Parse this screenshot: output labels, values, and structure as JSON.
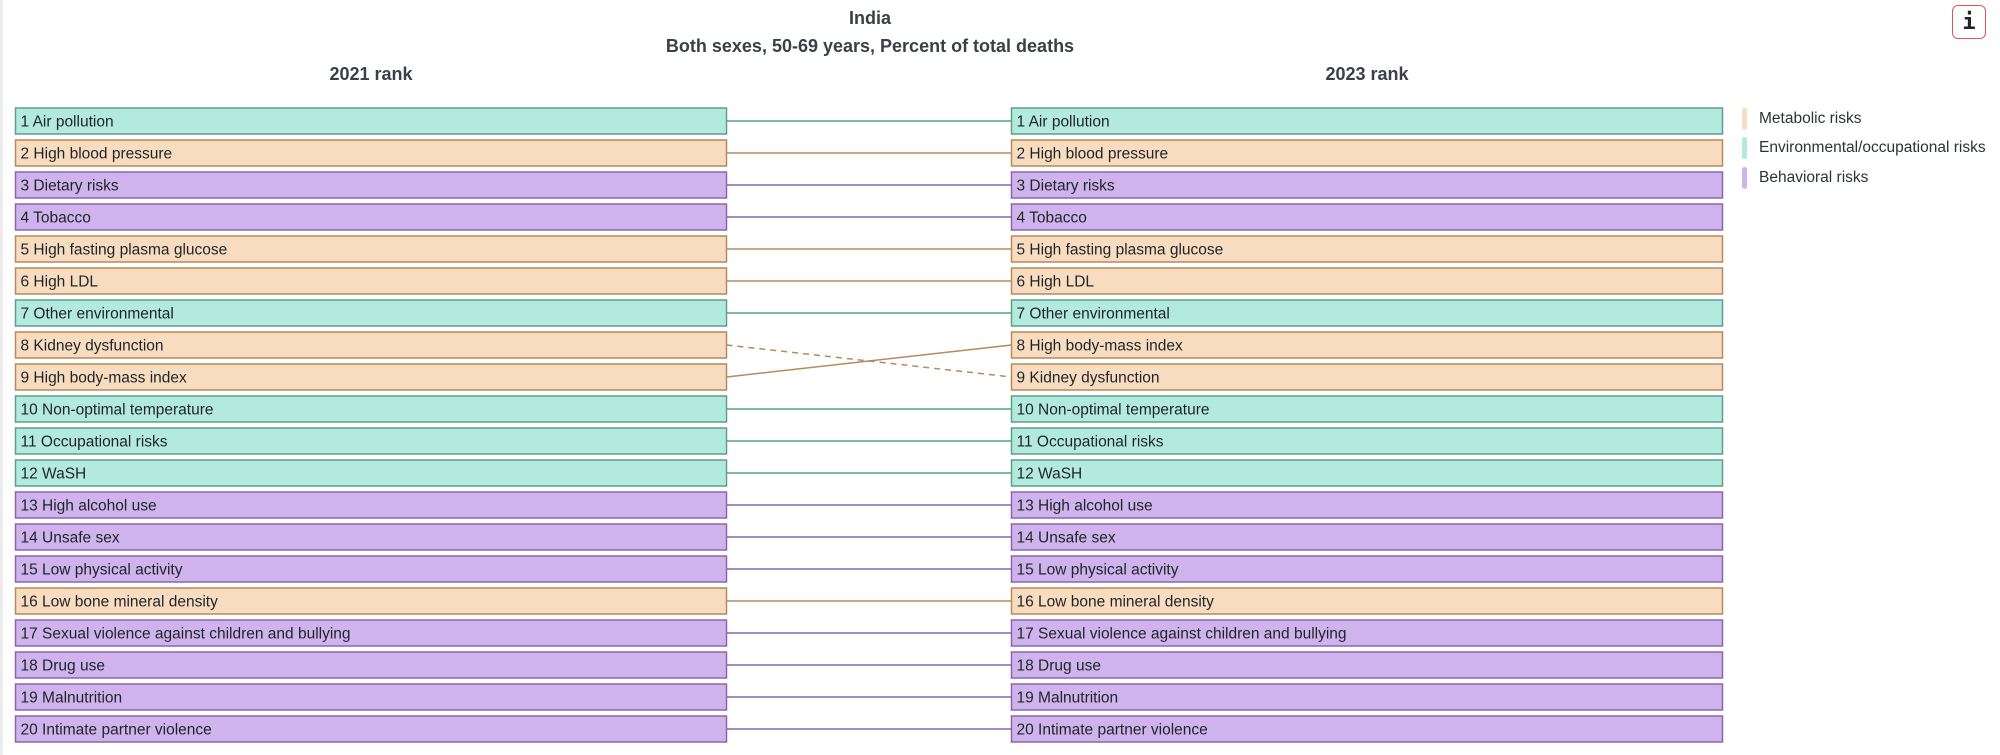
{
  "chart_data": {
    "type": "table",
    "chart_kind": "rank-comparison (slopegraph)",
    "title": "India",
    "subtitle": "Both sexes, 50-69 years, Percent of total deaths",
    "left_header": "2021 rank",
    "right_header": "2023 rank",
    "categories": {
      "metabolic": {
        "label": "Metabolic risks",
        "fill": "#f8dcbf",
        "stroke": "#b58a5c"
      },
      "environmental": {
        "label": "Environmental/occupational risks",
        "fill": "#b2ebdd",
        "stroke": "#5e9e8c"
      },
      "behavioral": {
        "label": "Behavioral risks",
        "fill": "#cfb3ec",
        "stroke": "#8a66b0"
      }
    },
    "legend": [
      "metabolic",
      "environmental",
      "behavioral"
    ],
    "legend_placement": "top-right",
    "left_ranks": [
      {
        "rank": 1,
        "name": "Air pollution",
        "category": "environmental"
      },
      {
        "rank": 2,
        "name": "High blood pressure",
        "category": "metabolic"
      },
      {
        "rank": 3,
        "name": "Dietary risks",
        "category": "behavioral"
      },
      {
        "rank": 4,
        "name": "Tobacco",
        "category": "behavioral"
      },
      {
        "rank": 5,
        "name": "High fasting plasma glucose",
        "category": "metabolic"
      },
      {
        "rank": 6,
        "name": "High LDL",
        "category": "metabolic"
      },
      {
        "rank": 7,
        "name": "Other environmental",
        "category": "environmental"
      },
      {
        "rank": 8,
        "name": "Kidney dysfunction",
        "category": "metabolic"
      },
      {
        "rank": 9,
        "name": "High body-mass index",
        "category": "metabolic"
      },
      {
        "rank": 10,
        "name": "Non-optimal temperature",
        "category": "environmental"
      },
      {
        "rank": 11,
        "name": "Occupational risks",
        "category": "environmental"
      },
      {
        "rank": 12,
        "name": "WaSH",
        "category": "environmental"
      },
      {
        "rank": 13,
        "name": "High alcohol use",
        "category": "behavioral"
      },
      {
        "rank": 14,
        "name": "Unsafe sex",
        "category": "behavioral"
      },
      {
        "rank": 15,
        "name": "Low physical activity",
        "category": "behavioral"
      },
      {
        "rank": 16,
        "name": "Low bone mineral density",
        "category": "metabolic"
      },
      {
        "rank": 17,
        "name": "Sexual violence against children and bullying",
        "category": "behavioral"
      },
      {
        "rank": 18,
        "name": "Drug use",
        "category": "behavioral"
      },
      {
        "rank": 19,
        "name": "Malnutrition",
        "category": "behavioral"
      },
      {
        "rank": 20,
        "name": "Intimate partner violence",
        "category": "behavioral"
      }
    ],
    "right_ranks": [
      {
        "rank": 1,
        "name": "Air pollution",
        "category": "environmental"
      },
      {
        "rank": 2,
        "name": "High blood pressure",
        "category": "metabolic"
      },
      {
        "rank": 3,
        "name": "Dietary risks",
        "category": "behavioral"
      },
      {
        "rank": 4,
        "name": "Tobacco",
        "category": "behavioral"
      },
      {
        "rank": 5,
        "name": "High fasting plasma glucose",
        "category": "metabolic"
      },
      {
        "rank": 6,
        "name": "High LDL",
        "category": "metabolic"
      },
      {
        "rank": 7,
        "name": "Other environmental",
        "category": "environmental"
      },
      {
        "rank": 8,
        "name": "High body-mass index",
        "category": "metabolic"
      },
      {
        "rank": 9,
        "name": "Kidney dysfunction",
        "category": "metabolic"
      },
      {
        "rank": 10,
        "name": "Non-optimal temperature",
        "category": "environmental"
      },
      {
        "rank": 11,
        "name": "Occupational risks",
        "category": "environmental"
      },
      {
        "rank": 12,
        "name": "WaSH",
        "category": "environmental"
      },
      {
        "rank": 13,
        "name": "High alcohol use",
        "category": "behavioral"
      },
      {
        "rank": 14,
        "name": "Unsafe sex",
        "category": "behavioral"
      },
      {
        "rank": 15,
        "name": "Low physical activity",
        "category": "behavioral"
      },
      {
        "rank": 16,
        "name": "Low bone mineral density",
        "category": "metabolic"
      },
      {
        "rank": 17,
        "name": "Sexual violence against children and bullying",
        "category": "behavioral"
      },
      {
        "rank": 18,
        "name": "Drug use",
        "category": "behavioral"
      },
      {
        "rank": 19,
        "name": "Malnutrition",
        "category": "behavioral"
      },
      {
        "rank": 20,
        "name": "Intimate partner violence",
        "category": "behavioral"
      }
    ],
    "connectors_note": "Solid line = rank rose or unchanged; dashed line = rank fell"
  },
  "info_button": {
    "label": "i"
  }
}
